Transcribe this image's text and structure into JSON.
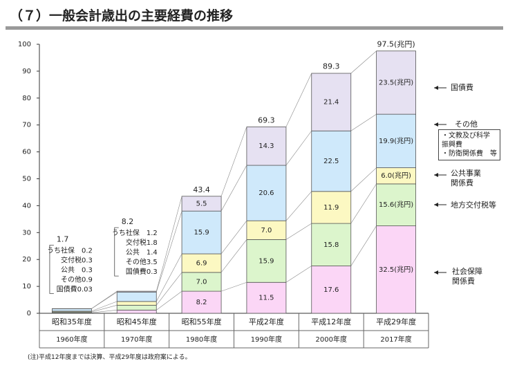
{
  "title": "（７）一般会計歳出の主要経費の推移",
  "chart_data": {
    "type": "stacked_bar",
    "categories": [
      "昭和35年度",
      "昭和45年度",
      "昭和55年度",
      "平成2年度",
      "平成12年度",
      "平成29年度"
    ],
    "category_years": [
      "1960年度",
      "1970年度",
      "1980年度",
      "1990年度",
      "2000年度",
      "2017年度"
    ],
    "ylim": [
      0,
      100
    ],
    "yticks": [
      0,
      10,
      20,
      30,
      40,
      50,
      60,
      70,
      80,
      90,
      100
    ],
    "series": [
      {
        "name": "社会保障\n関係費",
        "color": "#fbd6f6",
        "values": [
          0.2,
          1.2,
          8.2,
          11.5,
          17.6,
          32.5
        ],
        "value_labels": [
          null,
          null,
          "8.2",
          "11.5",
          "17.6",
          "32.5(兆円)"
        ]
      },
      {
        "name": "地方交付税等",
        "color": "#dcf5cc",
        "values": [
          0.3,
          1.8,
          7.0,
          15.9,
          15.8,
          15.6
        ],
        "value_labels": [
          null,
          null,
          "7.0",
          "15.9",
          "15.8",
          "15.6(兆円)"
        ]
      },
      {
        "name": "公共事業\n関係費",
        "color": "#fcf8c2",
        "values": [
          0.3,
          1.4,
          6.9,
          7.0,
          11.9,
          6.0
        ],
        "value_labels": [
          null,
          null,
          "6.9",
          "7.0",
          "11.9",
          "6.0(兆円)"
        ]
      },
      {
        "name": "その他",
        "note": "・文教及び科学\n振興費\n・防衛関係費　等",
        "color": "#cfe9fb",
        "values": [
          0.9,
          3.5,
          15.9,
          20.6,
          22.5,
          19.9
        ],
        "value_labels": [
          null,
          null,
          "15.9",
          "20.6",
          "22.5",
          "19.9(兆円)"
        ]
      },
      {
        "name": "国債費",
        "color": "#e6e1f2",
        "values": [
          0.03,
          0.3,
          5.5,
          14.3,
          21.4,
          23.5
        ],
        "value_labels": [
          null,
          null,
          "5.5",
          "14.3",
          "21.4",
          "23.5(兆円)"
        ]
      }
    ],
    "totals": [
      1.7,
      8.2,
      43.4,
      69.3,
      89.3,
      97.5
    ],
    "total_labels": [
      "1.7",
      "8.2",
      "43.4",
      "69.3",
      "89.3",
      "97.5(兆円)"
    ],
    "callouts": [
      [
        "うち社保　0.2",
        "交付税0.3",
        "公共　0.3",
        "その他0.9",
        "国債費0.03"
      ],
      [
        "うち社保　1.2",
        "交付税1.8",
        "公共　1.4",
        "その他3.5",
        "国債費0.3"
      ]
    ],
    "note": "(注)平成12年度までは決算、平成29年度は政府案による。"
  }
}
